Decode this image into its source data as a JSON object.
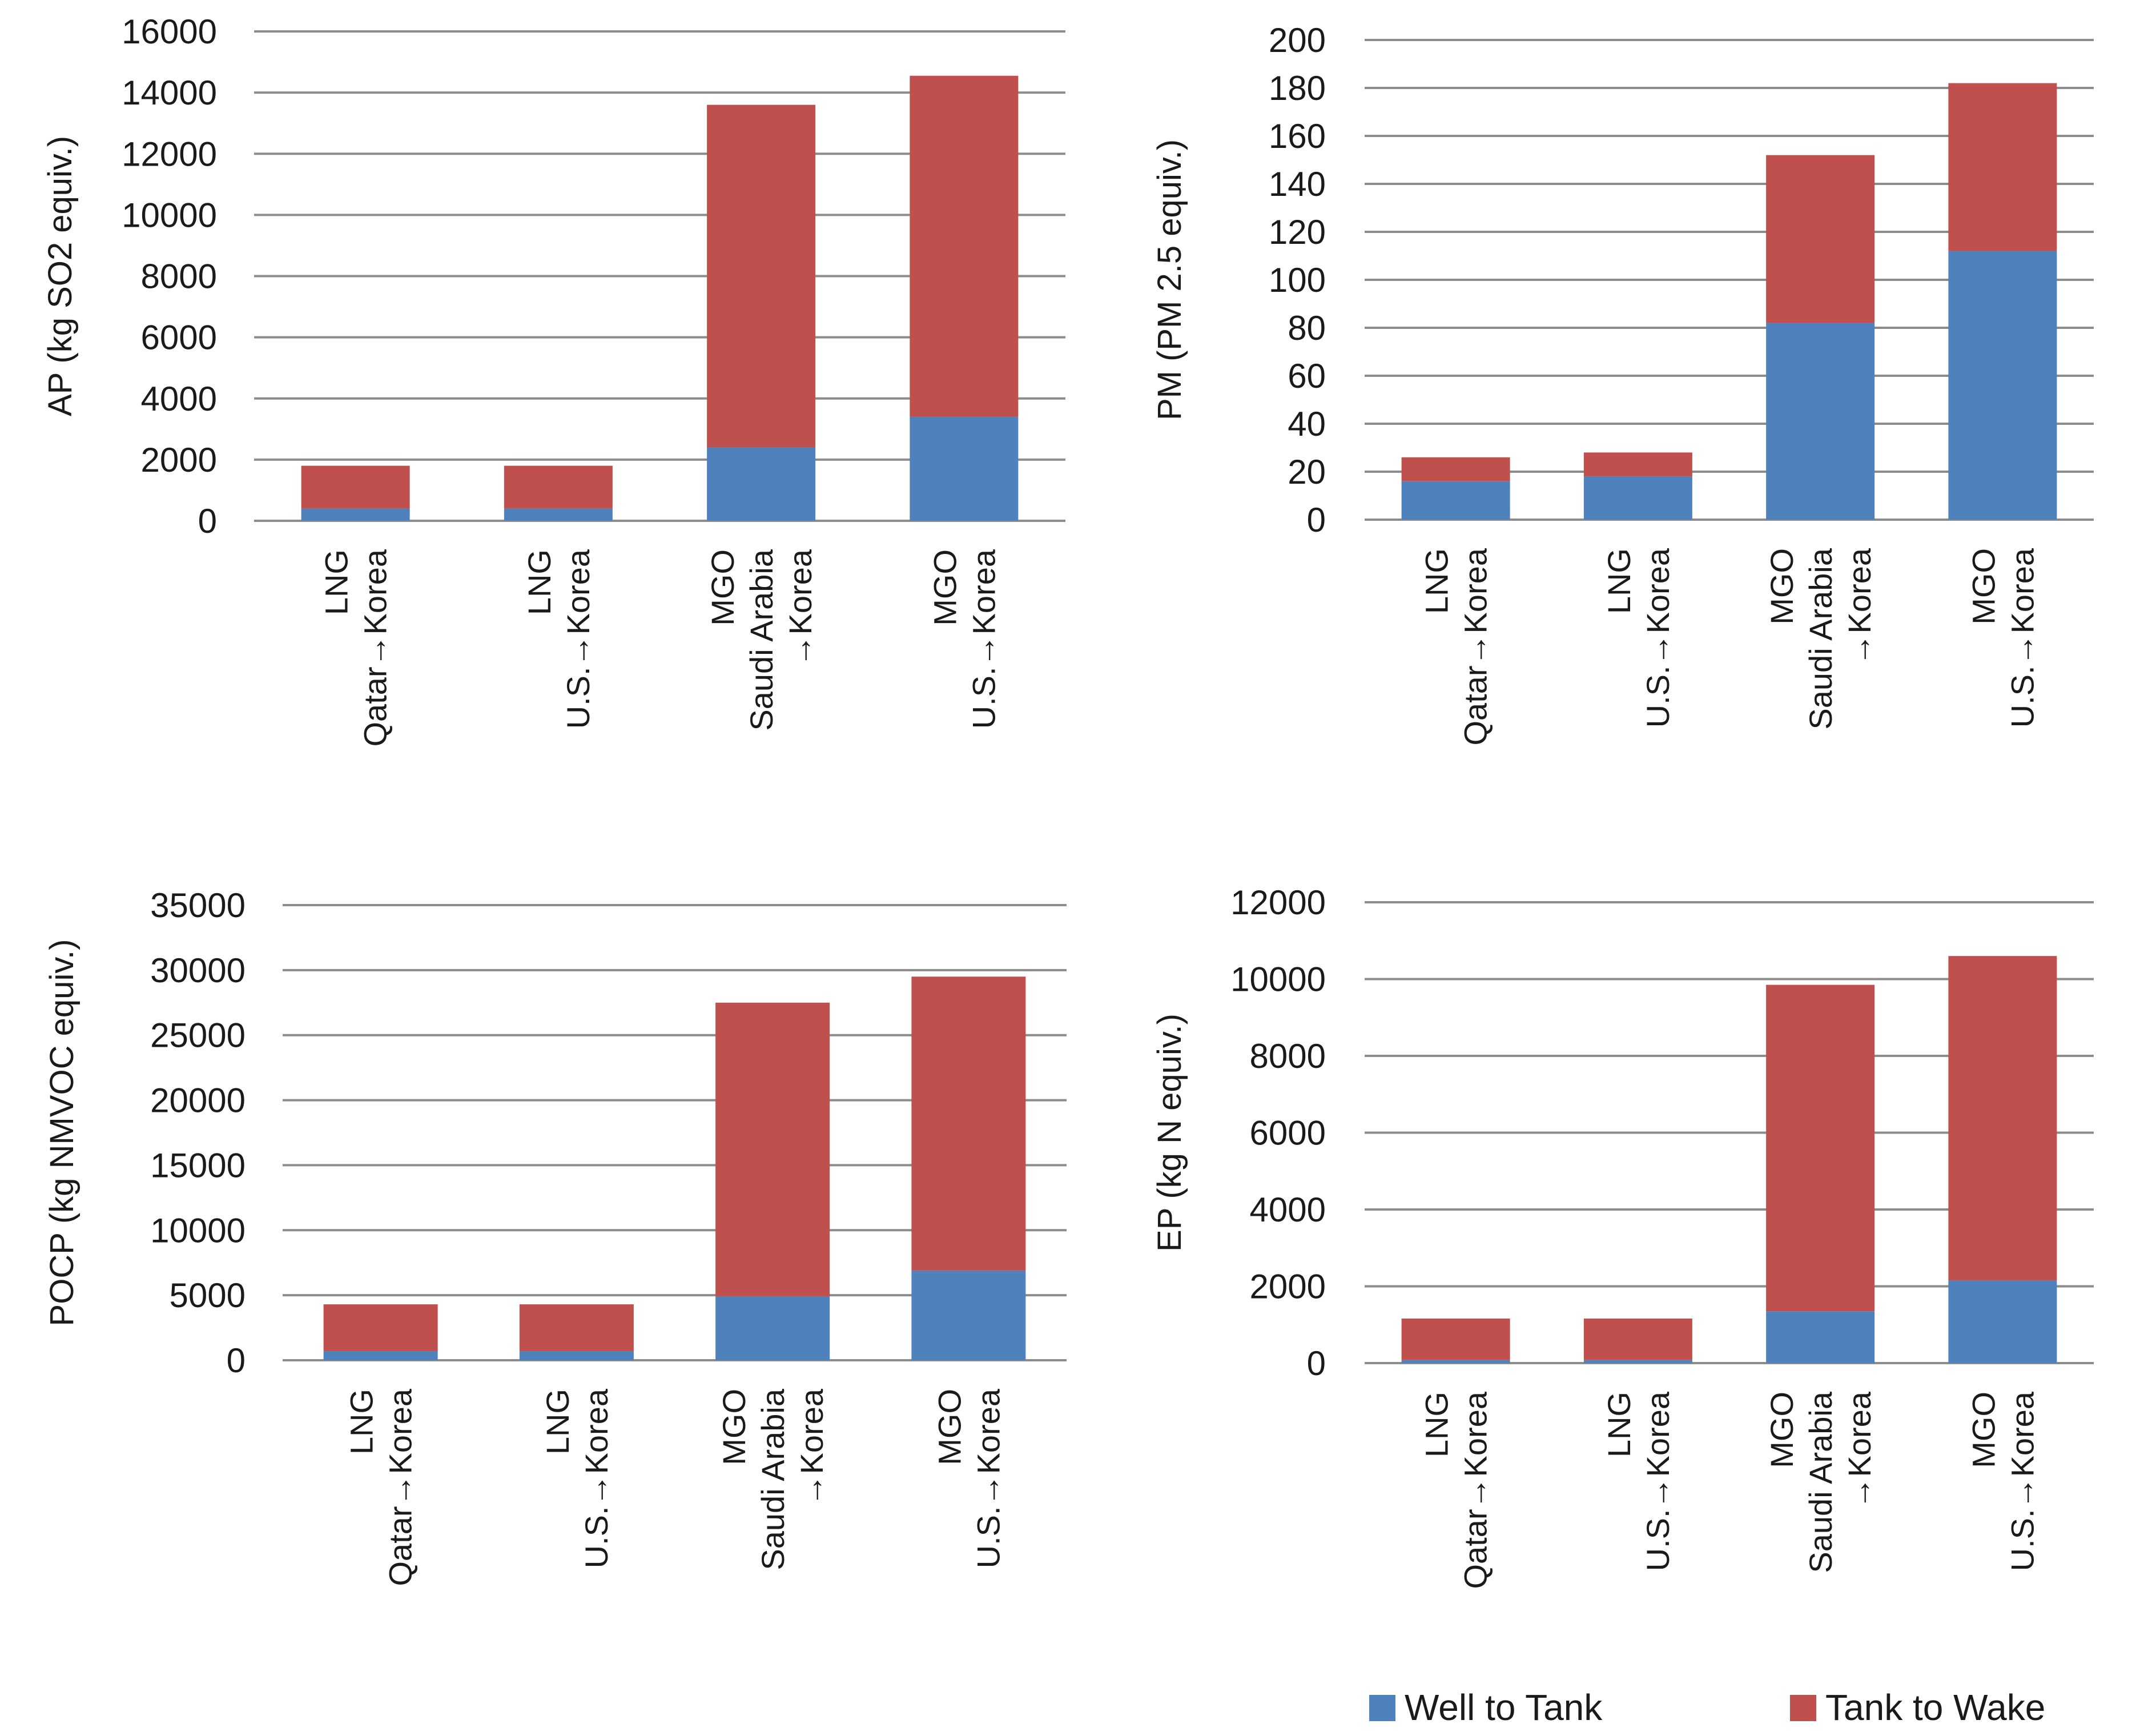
{
  "colors": {
    "well_to_tank": "#4F81BD",
    "tank_to_wake": "#C0504D",
    "grid": "#8c8c8c"
  },
  "legend": [
    {
      "key": "well_to_tank",
      "label": "Well to Tank",
      "color": "#4F81BD"
    },
    {
      "key": "tank_to_wake",
      "label": "Tank to Wake",
      "color": "#C0504D"
    }
  ],
  "chart_data": [
    {
      "type": "bar",
      "stacked": true,
      "id": "ap",
      "ylabel": "AP (kg SO2 equiv.)",
      "ylim": [
        0,
        16000
      ],
      "ytick_step": 2000,
      "yticks": [
        "0",
        "2000",
        "4000",
        "6000",
        "8000",
        "10000",
        "12000",
        "14000",
        "16000"
      ],
      "categories": [
        [
          "LNG",
          "Qatar→Korea"
        ],
        [
          "LNG",
          "U.S.→Korea"
        ],
        [
          "MGO",
          "Saudi Arabia",
          "→Korea"
        ],
        [
          "MGO",
          "U.S.→Korea"
        ]
      ],
      "series": [
        {
          "name": "Well to Tank",
          "values": [
            400,
            400,
            2400,
            3400
          ]
        },
        {
          "name": "Tank to Wake",
          "values": [
            1400,
            1400,
            11200,
            11150
          ]
        }
      ]
    },
    {
      "type": "bar",
      "stacked": true,
      "id": "pm",
      "ylabel": "PM (PM 2.5 equiv.)",
      "ylim": [
        0,
        200
      ],
      "ytick_step": 20,
      "yticks": [
        "0",
        "20",
        "40",
        "60",
        "80",
        "100",
        "120",
        "140",
        "160",
        "180",
        "200"
      ],
      "categories": [
        [
          "LNG",
          "Qatar→Korea"
        ],
        [
          "LNG",
          "U.S.→Korea"
        ],
        [
          "MGO",
          "Saudi Arabia",
          "→Korea"
        ],
        [
          "MGO",
          "U.S.→Korea"
        ]
      ],
      "series": [
        {
          "name": "Well to Tank",
          "values": [
            16,
            18,
            82,
            112
          ]
        },
        {
          "name": "Tank to Wake",
          "values": [
            10,
            10,
            70,
            70
          ]
        }
      ]
    },
    {
      "type": "bar",
      "stacked": true,
      "id": "pocp",
      "ylabel": "POCP (kg NMVOC equiv.)",
      "ylim": [
        0,
        35000
      ],
      "ytick_step": 5000,
      "yticks": [
        "0",
        "5000",
        "10000",
        "15000",
        "20000",
        "25000",
        "30000",
        "35000"
      ],
      "categories": [
        [
          "LNG",
          "Qatar→Korea"
        ],
        [
          "LNG",
          "U.S.→Korea"
        ],
        [
          "MGO",
          "Saudi Arabia",
          "→Korea"
        ],
        [
          "MGO",
          "U.S.→Korea"
        ]
      ],
      "series": [
        {
          "name": "Well to Tank",
          "values": [
            700,
            700,
            4900,
            6900
          ]
        },
        {
          "name": "Tank to Wake",
          "values": [
            3600,
            3600,
            22600,
            22600
          ]
        }
      ]
    },
    {
      "type": "bar",
      "stacked": true,
      "id": "ep",
      "ylabel": "EP (kg N equiv.)",
      "ylim": [
        0,
        12000
      ],
      "ytick_step": 2000,
      "yticks": [
        "0",
        "2000",
        "4000",
        "6000",
        "8000",
        "10000",
        "12000"
      ],
      "categories": [
        [
          "LNG",
          "Qatar→Korea"
        ],
        [
          "LNG",
          "U.S.→Korea"
        ],
        [
          "MGO",
          "Saudi Arabia",
          "→Korea"
        ],
        [
          "MGO",
          "U.S.→Korea"
        ]
      ],
      "series": [
        {
          "name": "Well to Tank",
          "values": [
            80,
            80,
            1350,
            2150
          ]
        },
        {
          "name": "Tank to Wake",
          "values": [
            1080,
            1080,
            8500,
            8450
          ]
        }
      ]
    }
  ]
}
